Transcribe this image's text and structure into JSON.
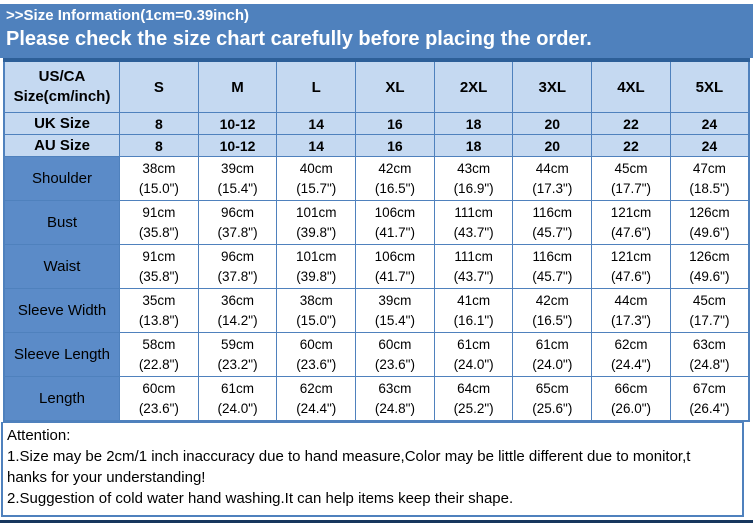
{
  "banner": {
    "line1": ">>Size Information(1cm=0.39inch)",
    "line2": "Please check the size chart carefully before placing the order."
  },
  "table": {
    "corner_header": {
      "line1": "US/CA",
      "line2": "Size(cm/inch)"
    },
    "size_labels": [
      "S",
      "M",
      "L",
      "XL",
      "2XL",
      "3XL",
      "4XL",
      "5XL"
    ],
    "uk_row": {
      "label": "UK Size",
      "values": [
        "8",
        "10-12",
        "14",
        "16",
        "18",
        "20",
        "22",
        "24"
      ]
    },
    "au_row": {
      "label": "AU Size",
      "values": [
        "8",
        "10-12",
        "14",
        "16",
        "18",
        "20",
        "22",
        "24"
      ]
    },
    "measurement_rows": [
      {
        "label": "Shoulder",
        "cells": [
          {
            "cm": "38cm",
            "inch": "(15.0\")"
          },
          {
            "cm": "39cm",
            "inch": "(15.4\")"
          },
          {
            "cm": "40cm",
            "inch": "(15.7\")"
          },
          {
            "cm": "42cm",
            "inch": "(16.5\")"
          },
          {
            "cm": "43cm",
            "inch": "(16.9\")"
          },
          {
            "cm": "44cm",
            "inch": "(17.3\")"
          },
          {
            "cm": "45cm",
            "inch": "(17.7\")"
          },
          {
            "cm": "47cm",
            "inch": "(18.5\")"
          }
        ]
      },
      {
        "label": "Bust",
        "cells": [
          {
            "cm": "91cm",
            "inch": "(35.8\")"
          },
          {
            "cm": "96cm",
            "inch": "(37.8\")"
          },
          {
            "cm": "101cm",
            "inch": "(39.8\")"
          },
          {
            "cm": "106cm",
            "inch": "(41.7\")"
          },
          {
            "cm": "111cm",
            "inch": "(43.7\")"
          },
          {
            "cm": "116cm",
            "inch": "(45.7\")"
          },
          {
            "cm": "121cm",
            "inch": "(47.6\")"
          },
          {
            "cm": "126cm",
            "inch": "(49.6\")"
          }
        ]
      },
      {
        "label": "Waist",
        "cells": [
          {
            "cm": "91cm",
            "inch": "(35.8\")"
          },
          {
            "cm": "96cm",
            "inch": "(37.8\")"
          },
          {
            "cm": "101cm",
            "inch": "(39.8\")"
          },
          {
            "cm": "106cm",
            "inch": "(41.7\")"
          },
          {
            "cm": "111cm",
            "inch": "(43.7\")"
          },
          {
            "cm": "116cm",
            "inch": "(45.7\")"
          },
          {
            "cm": "121cm",
            "inch": "(47.6\")"
          },
          {
            "cm": "126cm",
            "inch": "(49.6\")"
          }
        ]
      },
      {
        "label": "Sleeve Width",
        "cells": [
          {
            "cm": "35cm",
            "inch": "(13.8\")"
          },
          {
            "cm": "36cm",
            "inch": "(14.2\")"
          },
          {
            "cm": "38cm",
            "inch": "(15.0\")"
          },
          {
            "cm": "39cm",
            "inch": "(15.4\")"
          },
          {
            "cm": "41cm",
            "inch": "(16.1\")"
          },
          {
            "cm": "42cm",
            "inch": "(16.5\")"
          },
          {
            "cm": "44cm",
            "inch": "(17.3\")"
          },
          {
            "cm": "45cm",
            "inch": "(17.7\")"
          }
        ]
      },
      {
        "label": "Sleeve Length",
        "cells": [
          {
            "cm": "58cm",
            "inch": "(22.8\")"
          },
          {
            "cm": "59cm",
            "inch": "(23.2\")"
          },
          {
            "cm": "60cm",
            "inch": "(23.6\")"
          },
          {
            "cm": "60cm",
            "inch": "(23.6\")"
          },
          {
            "cm": "61cm",
            "inch": "(24.0\")"
          },
          {
            "cm": "61cm",
            "inch": "(24.0\")"
          },
          {
            "cm": "62cm",
            "inch": "(24.4\")"
          },
          {
            "cm": "63cm",
            "inch": "(24.8\")"
          }
        ]
      },
      {
        "label": "Length",
        "cells": [
          {
            "cm": "60cm",
            "inch": "(23.6\")"
          },
          {
            "cm": "61cm",
            "inch": "(24.0\")"
          },
          {
            "cm": "62cm",
            "inch": "(24.4\")"
          },
          {
            "cm": "63cm",
            "inch": "(24.8\")"
          },
          {
            "cm": "64cm",
            "inch": "(25.2\")"
          },
          {
            "cm": "65cm",
            "inch": "(25.6\")"
          },
          {
            "cm": "66cm",
            "inch": "(26.0\")"
          },
          {
            "cm": "67cm",
            "inch": "(26.4\")"
          }
        ]
      }
    ]
  },
  "attention": {
    "title": "Attention:",
    "lines": [
      "1.Size may be 2cm/1 inch inaccuracy due to hand measure,Color may be little different due to monitor,t",
      "hanks for your understanding!",
      "2.Suggestion of cold water hand washing.It can help items keep their shape."
    ]
  },
  "colors": {
    "banner_blue": "#4f81bd",
    "header_light_blue": "#c5d9f1",
    "label_column_blue": "#5b8bc8",
    "grid_border_blue": "#4f81bd",
    "dark_navy": "#17375e"
  }
}
